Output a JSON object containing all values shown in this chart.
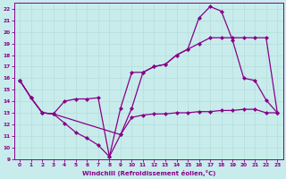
{
  "xlabel": "Windchill (Refroidissement éolien,°C)",
  "xlim": [
    -0.5,
    23.5
  ],
  "ylim": [
    9,
    22.5
  ],
  "xticks": [
    0,
    1,
    2,
    3,
    4,
    5,
    6,
    7,
    8,
    9,
    10,
    11,
    12,
    13,
    14,
    15,
    16,
    17,
    18,
    19,
    20,
    21,
    22,
    23
  ],
  "yticks": [
    9,
    10,
    11,
    12,
    13,
    14,
    15,
    16,
    17,
    18,
    19,
    20,
    21,
    22
  ],
  "background_color": "#c8ecec",
  "line_color": "#880088",
  "grid_color": "#aadddd",
  "line1_x": [
    0,
    1,
    2,
    3,
    4,
    5,
    6,
    7,
    8,
    9,
    10,
    11,
    12,
    13,
    14,
    15,
    16,
    17,
    18,
    19,
    20,
    21,
    22,
    23
  ],
  "line1_y": [
    15.8,
    14.3,
    13.0,
    12.9,
    12.1,
    11.3,
    10.8,
    10.2,
    9.2,
    11.1,
    12.6,
    12.8,
    12.9,
    12.9,
    13.0,
    13.0,
    13.1,
    13.1,
    13.2,
    13.2,
    13.3,
    13.3,
    13.0,
    13.0
  ],
  "line2_x": [
    0,
    1,
    2,
    3,
    4,
    5,
    6,
    7,
    8,
    9,
    10,
    11,
    12,
    13,
    14,
    15,
    16,
    17,
    18,
    19,
    20,
    21,
    22,
    23
  ],
  "line2_y": [
    15.8,
    14.3,
    13.0,
    12.9,
    14.0,
    14.2,
    14.2,
    14.3,
    9.2,
    13.4,
    16.5,
    16.5,
    17.0,
    17.2,
    18.0,
    18.5,
    21.2,
    22.2,
    21.8,
    19.3,
    16.0,
    15.8,
    14.1,
    13.0
  ],
  "line3_x": [
    0,
    1,
    2,
    3,
    9,
    10,
    11,
    12,
    13,
    14,
    15,
    16,
    17,
    18,
    19,
    20,
    21,
    22,
    23
  ],
  "line3_y": [
    15.8,
    14.3,
    13.0,
    12.9,
    11.1,
    13.4,
    16.5,
    17.0,
    17.2,
    18.0,
    18.5,
    19.0,
    19.5,
    19.5,
    19.5,
    19.5,
    19.5,
    19.5,
    13.0
  ],
  "markersize": 2.5
}
